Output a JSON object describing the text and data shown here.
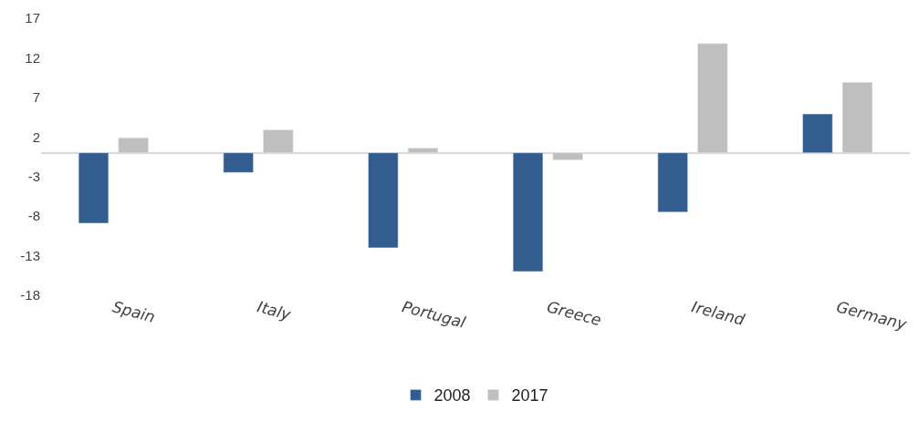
{
  "chart_data": {
    "type": "bar",
    "categories": [
      "Spain",
      "Italy",
      "Portugal",
      "Greece",
      "Ireland",
      "Germany"
    ],
    "series": [
      {
        "name": "2008",
        "color": "#335d8f",
        "values": [
          -8.9,
          -2.5,
          -12.0,
          -15.0,
          -7.5,
          4.9
        ]
      },
      {
        "name": "2017",
        "color": "#bfbfbf",
        "values": [
          1.9,
          2.9,
          0.6,
          -0.9,
          13.8,
          8.9
        ]
      }
    ],
    "ylim": [
      -18,
      17
    ],
    "yticks": [
      -18,
      -13,
      -8,
      -3,
      2,
      7,
      12,
      17
    ],
    "legend": "bottom"
  }
}
